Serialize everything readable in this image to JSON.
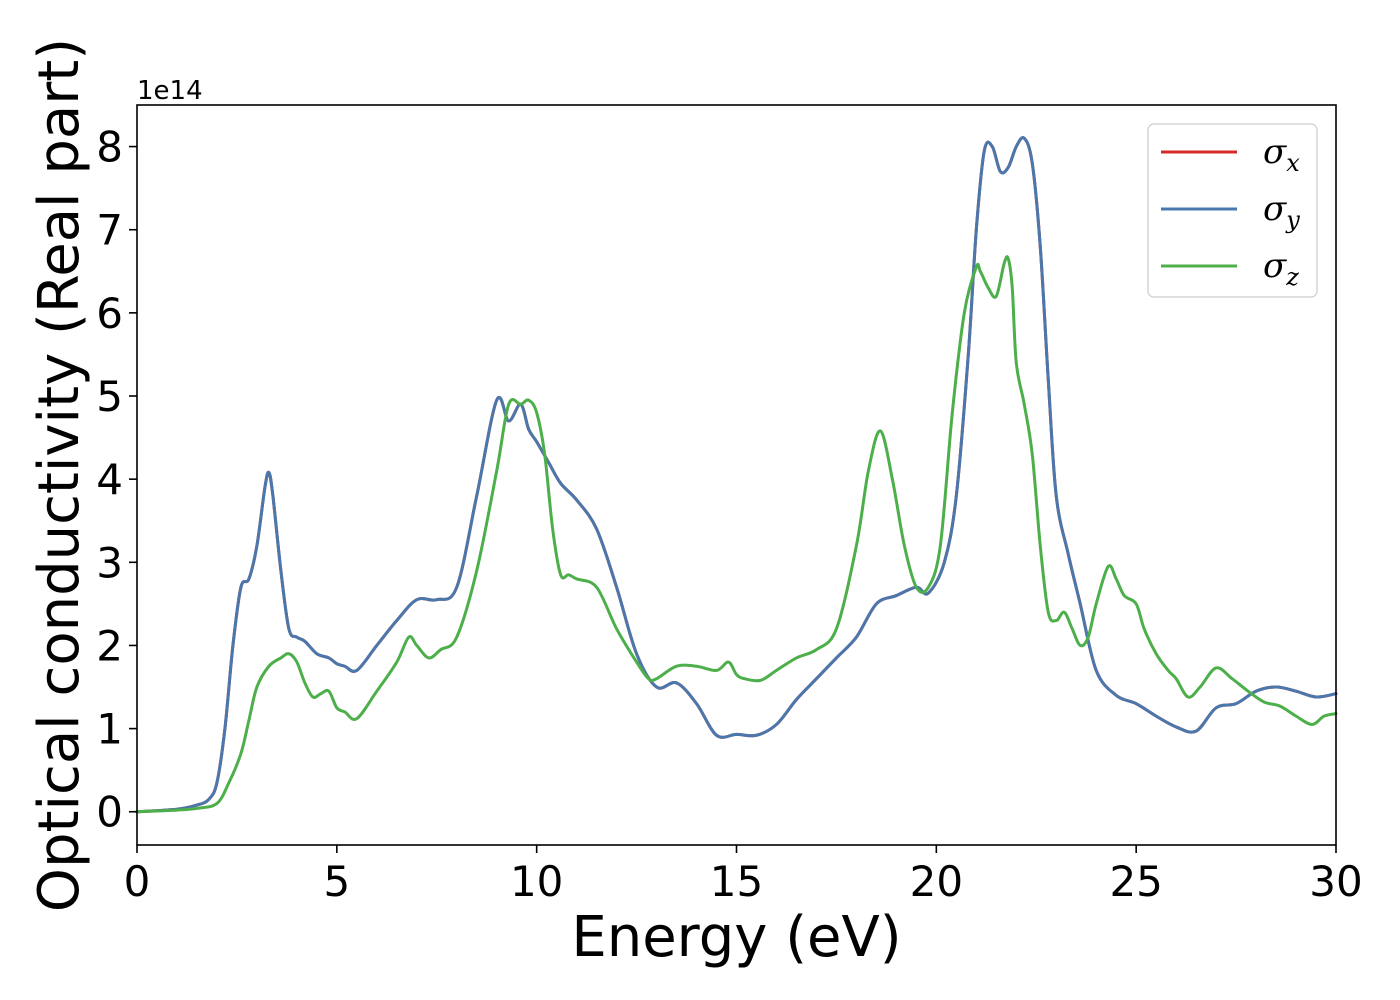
{
  "chart_data": {
    "type": "line",
    "xlabel": "Energy (eV)",
    "ylabel": "Optical conductivity (Real part)",
    "offset_text": "1e14",
    "y_scale_factor": 100000000000000.0,
    "xlim": [
      0,
      30
    ],
    "ylim": [
      -0.4,
      8.5
    ],
    "x_ticks": [
      0,
      5,
      10,
      15,
      20,
      25,
      30
    ],
    "x_tick_labels": [
      "0",
      "5",
      "10",
      "15",
      "20",
      "25",
      "30"
    ],
    "y_ticks": [
      0,
      1,
      2,
      3,
      4,
      5,
      6,
      7,
      8
    ],
    "y_tick_labels": [
      "0",
      "1",
      "2",
      "3",
      "4",
      "5",
      "6",
      "7",
      "8"
    ],
    "grid": false,
    "legend_position": "top-right",
    "legend": [
      {
        "symbol": "σ",
        "subscript": "x",
        "color": "#d62728"
      },
      {
        "symbol": "σ",
        "subscript": "y",
        "color": "#4a78ad"
      },
      {
        "symbol": "σ",
        "subscript": "z",
        "color": "#4daf4a"
      }
    ],
    "series": [
      {
        "name": "σx",
        "color": "#d62728",
        "x": [
          0,
          1,
          1.5,
          1.8,
          2.0,
          2.2,
          2.4,
          2.6,
          2.8,
          3.0,
          3.2,
          3.3,
          3.4,
          3.6,
          3.8,
          4.0,
          4.2,
          4.5,
          4.8,
          5.0,
          5.2,
          5.5,
          6.0,
          6.5,
          7.0,
          7.5,
          8.0,
          8.5,
          9.0,
          9.3,
          9.6,
          9.8,
          10.0,
          10.3,
          10.6,
          11.0,
          11.5,
          12.0,
          12.5,
          13.0,
          13.5,
          14.0,
          14.5,
          15.0,
          15.5,
          16.0,
          16.5,
          17.0,
          17.5,
          18.0,
          18.5,
          19.0,
          19.5,
          19.8,
          20.2,
          20.5,
          20.8,
          21.0,
          21.2,
          21.4,
          21.6,
          21.8,
          22.0,
          22.2,
          22.4,
          22.6,
          22.8,
          23.0,
          23.3,
          23.6,
          24.0,
          24.5,
          25.0,
          25.5,
          26.0,
          26.5,
          27.0,
          27.5,
          28.0,
          28.5,
          29.0,
          29.5,
          30.0
        ],
        "y": [
          0,
          0.03,
          0.08,
          0.15,
          0.35,
          1.0,
          2.0,
          2.7,
          2.8,
          3.2,
          3.9,
          4.08,
          3.8,
          2.9,
          2.2,
          2.1,
          2.05,
          1.9,
          1.85,
          1.78,
          1.75,
          1.7,
          2.0,
          2.3,
          2.55,
          2.55,
          2.7,
          3.8,
          4.95,
          4.7,
          4.9,
          4.6,
          4.45,
          4.2,
          3.95,
          3.75,
          3.4,
          2.7,
          1.9,
          1.5,
          1.55,
          1.3,
          0.92,
          0.93,
          0.92,
          1.05,
          1.35,
          1.6,
          1.85,
          2.1,
          2.5,
          2.6,
          2.7,
          2.63,
          3.0,
          3.8,
          5.5,
          7.0,
          7.95,
          8.0,
          7.7,
          7.75,
          8.0,
          8.1,
          7.8,
          6.8,
          5.2,
          3.8,
          3.1,
          2.5,
          1.7,
          1.4,
          1.3,
          1.15,
          1.02,
          0.97,
          1.25,
          1.3,
          1.45,
          1.5,
          1.45,
          1.38,
          1.42
        ]
      },
      {
        "name": "σy",
        "color": "#4a78ad",
        "x": [
          0,
          1,
          1.5,
          1.8,
          2.0,
          2.2,
          2.4,
          2.6,
          2.8,
          3.0,
          3.2,
          3.3,
          3.4,
          3.6,
          3.8,
          4.0,
          4.2,
          4.5,
          4.8,
          5.0,
          5.2,
          5.5,
          6.0,
          6.5,
          7.0,
          7.5,
          8.0,
          8.5,
          9.0,
          9.3,
          9.6,
          9.8,
          10.0,
          10.3,
          10.6,
          11.0,
          11.5,
          12.0,
          12.5,
          13.0,
          13.5,
          14.0,
          14.5,
          15.0,
          15.5,
          16.0,
          16.5,
          17.0,
          17.5,
          18.0,
          18.5,
          19.0,
          19.5,
          19.8,
          20.2,
          20.5,
          20.8,
          21.0,
          21.2,
          21.4,
          21.6,
          21.8,
          22.0,
          22.2,
          22.4,
          22.6,
          22.8,
          23.0,
          23.3,
          23.6,
          24.0,
          24.5,
          25.0,
          25.5,
          26.0,
          26.5,
          27.0,
          27.5,
          28.0,
          28.5,
          29.0,
          29.5,
          30.0
        ],
        "y": [
          0,
          0.03,
          0.08,
          0.15,
          0.35,
          1.0,
          2.0,
          2.7,
          2.8,
          3.2,
          3.9,
          4.08,
          3.8,
          2.9,
          2.2,
          2.1,
          2.05,
          1.9,
          1.85,
          1.78,
          1.75,
          1.7,
          2.0,
          2.3,
          2.55,
          2.55,
          2.7,
          3.8,
          4.95,
          4.7,
          4.9,
          4.6,
          4.45,
          4.2,
          3.95,
          3.75,
          3.4,
          2.7,
          1.9,
          1.5,
          1.55,
          1.3,
          0.92,
          0.93,
          0.92,
          1.05,
          1.35,
          1.6,
          1.85,
          2.1,
          2.5,
          2.6,
          2.7,
          2.63,
          3.0,
          3.8,
          5.5,
          7.0,
          7.95,
          8.0,
          7.7,
          7.75,
          8.0,
          8.1,
          7.8,
          6.8,
          5.2,
          3.8,
          3.1,
          2.5,
          1.7,
          1.4,
          1.3,
          1.15,
          1.02,
          0.97,
          1.25,
          1.3,
          1.45,
          1.5,
          1.45,
          1.38,
          1.42
        ]
      },
      {
        "name": "σz",
        "color": "#4daf4a",
        "x": [
          0,
          1,
          1.5,
          2.0,
          2.3,
          2.6,
          2.8,
          3.0,
          3.3,
          3.6,
          3.8,
          4.0,
          4.2,
          4.4,
          4.6,
          4.8,
          5.0,
          5.2,
          5.5,
          6.0,
          6.5,
          6.8,
          7.0,
          7.3,
          7.6,
          8.0,
          8.5,
          9.0,
          9.3,
          9.6,
          9.8,
          10.0,
          10.2,
          10.4,
          10.6,
          10.8,
          11.0,
          11.5,
          12.0,
          12.5,
          12.8,
          13.0,
          13.5,
          14.0,
          14.5,
          14.8,
          15.0,
          15.2,
          15.6,
          16.0,
          16.5,
          17.0,
          17.5,
          18.0,
          18.3,
          18.6,
          18.9,
          19.2,
          19.5,
          19.8,
          20.1,
          20.4,
          20.7,
          21.0,
          21.1,
          21.3,
          21.5,
          21.7,
          21.8,
          21.9,
          22.0,
          22.2,
          22.4,
          22.6,
          22.8,
          23.0,
          23.2,
          23.4,
          23.6,
          23.8,
          24.0,
          24.3,
          24.5,
          24.7,
          25.0,
          25.2,
          25.5,
          25.8,
          26.0,
          26.3,
          26.6,
          27.0,
          27.4,
          27.8,
          28.2,
          28.6,
          29.0,
          29.4,
          29.7,
          30.0
        ],
        "y": [
          0,
          0.02,
          0.04,
          0.1,
          0.35,
          0.7,
          1.1,
          1.5,
          1.75,
          1.85,
          1.9,
          1.8,
          1.55,
          1.38,
          1.42,
          1.45,
          1.25,
          1.2,
          1.12,
          1.45,
          1.8,
          2.1,
          2.0,
          1.85,
          1.95,
          2.1,
          2.9,
          4.1,
          4.9,
          4.9,
          4.95,
          4.8,
          4.3,
          3.4,
          2.85,
          2.85,
          2.8,
          2.7,
          2.2,
          1.8,
          1.6,
          1.6,
          1.75,
          1.75,
          1.7,
          1.8,
          1.65,
          1.6,
          1.58,
          1.7,
          1.85,
          1.95,
          2.2,
          3.2,
          4.1,
          4.58,
          4.0,
          3.2,
          2.7,
          2.7,
          3.2,
          4.8,
          6.0,
          6.55,
          6.5,
          6.3,
          6.2,
          6.6,
          6.65,
          6.3,
          5.4,
          4.9,
          4.3,
          3.2,
          2.4,
          2.3,
          2.4,
          2.2,
          2.0,
          2.1,
          2.5,
          2.95,
          2.8,
          2.6,
          2.5,
          2.2,
          1.9,
          1.7,
          1.6,
          1.38,
          1.5,
          1.73,
          1.6,
          1.45,
          1.32,
          1.27,
          1.15,
          1.05,
          1.15,
          1.18
        ]
      }
    ]
  }
}
